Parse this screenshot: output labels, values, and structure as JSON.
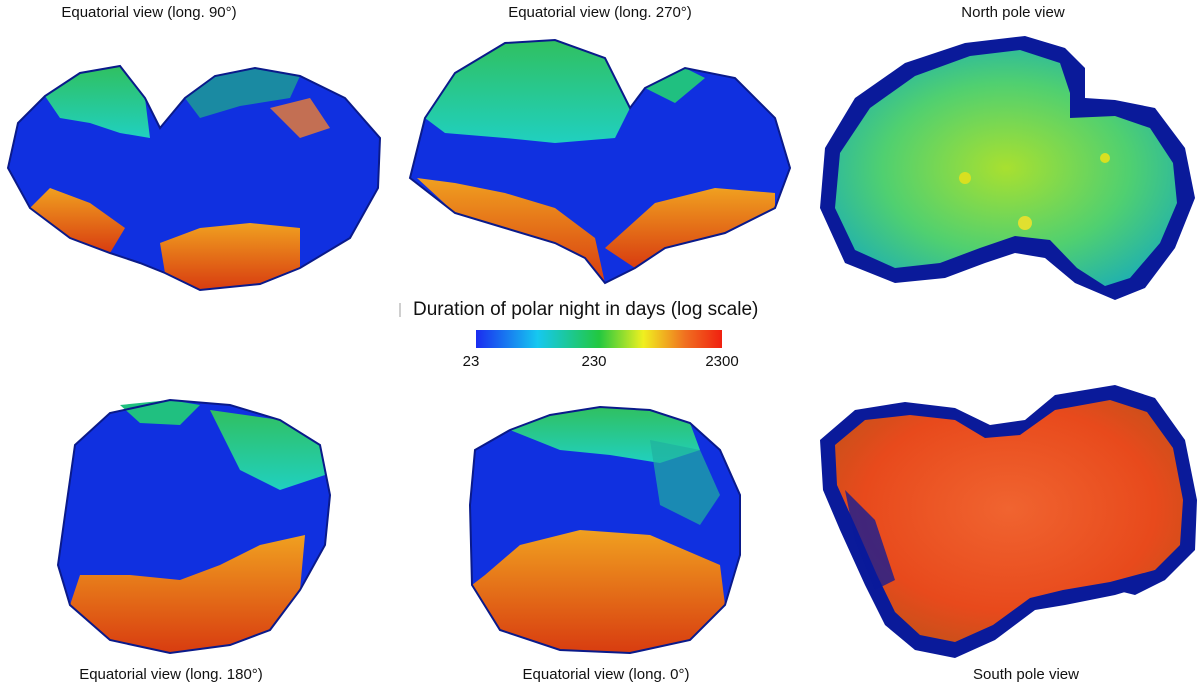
{
  "views": [
    {
      "caption": "Equatorial view (long. 90°)"
    },
    {
      "caption": "Equatorial view (long. 270°)"
    },
    {
      "caption": "North pole view"
    },
    {
      "caption": "Equatorial view (long. 180°)"
    },
    {
      "caption": "Equatorial view (long. 0°)"
    },
    {
      "caption": "South pole view"
    }
  ],
  "legend": {
    "title": "Duration of polar night in days (log scale)",
    "ticks": [
      "23",
      "230",
      "2300"
    ],
    "gradient_colors": [
      "#1a2cf0",
      "#16c8f0",
      "#22c840",
      "#f0f020",
      "#f07020",
      "#f02010"
    ]
  },
  "colors": {
    "short_night": "#1030e0",
    "medium_night": "#20c070",
    "long_night": "#e04a18",
    "outline": "#0a1a8a"
  }
}
